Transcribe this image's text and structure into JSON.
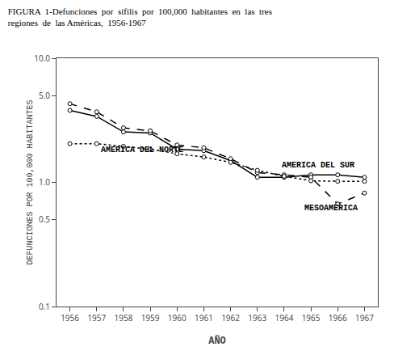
{
  "chart_data": {
    "type": "line",
    "title": "FIGURA  1-Defunciones  por  sífilis  por  100,000  habitantes  en  las  tres\nregiones  de  las Américas,  1956-1967",
    "x_label": "AÑO",
    "y_label": "DEFUNCIONES POR 100,000 HABITANTES",
    "x": [
      1956,
      1957,
      1958,
      1959,
      1960,
      1961,
      1962,
      1963,
      1964,
      1965,
      1966,
      1967
    ],
    "series": [
      {
        "color": "#000000",
        "line_style": "solid",
        "marker": "circle",
        "values": [
          3.8,
          3.4,
          2.55,
          2.5,
          1.85,
          1.8,
          1.5,
          1.1,
          1.1,
          1.15,
          1.15,
          1.1
        ]
      },
      {
        "color": "#000000",
        "line_style": "dashed",
        "marker": "circle",
        "values": [
          4.3,
          3.7,
          2.75,
          2.6,
          2.0,
          1.9,
          1.55,
          1.2,
          1.15,
          1.1,
          0.67,
          0.82
        ]
      },
      {
        "color": "#000000",
        "line_style": "dotted",
        "marker": "circle",
        "values": [
          2.05,
          2.05,
          1.95,
          1.85,
          1.7,
          1.6,
          1.45,
          1.25,
          1.12,
          1.03,
          1.02,
          1.02
        ]
      }
    ],
    "annotations": [
      {
        "text": "AMERICA DEL NORTE",
        "x": 1957.1,
        "y": 1.62,
        "color": "#000000"
      },
      {
        "text": "AMERICA DEL SUR",
        "x": 1963.85,
        "y": 1.22,
        "color": "#000000"
      },
      {
        "text": "MESOAMERICA",
        "x": 1964.7,
        "y": 0.555,
        "color": "#000000"
      }
    ],
    "xlim": [
      1955.5,
      1967.5
    ],
    "xticks": [
      1956,
      1957,
      1958,
      1959,
      1960,
      1961,
      1962,
      1963,
      1964,
      1965,
      1966,
      1967
    ],
    "ylim": [
      0.1,
      10.0
    ],
    "yticks": [
      0.1,
      0.5,
      {
        "value": 1.0,
        "label": "1.0"
      },
      {
        "value": 5.0,
        "label": "5.0"
      },
      {
        "value": 10.0,
        "label": "10.0"
      }
    ],
    "log": "y",
    "grid": false
  }
}
